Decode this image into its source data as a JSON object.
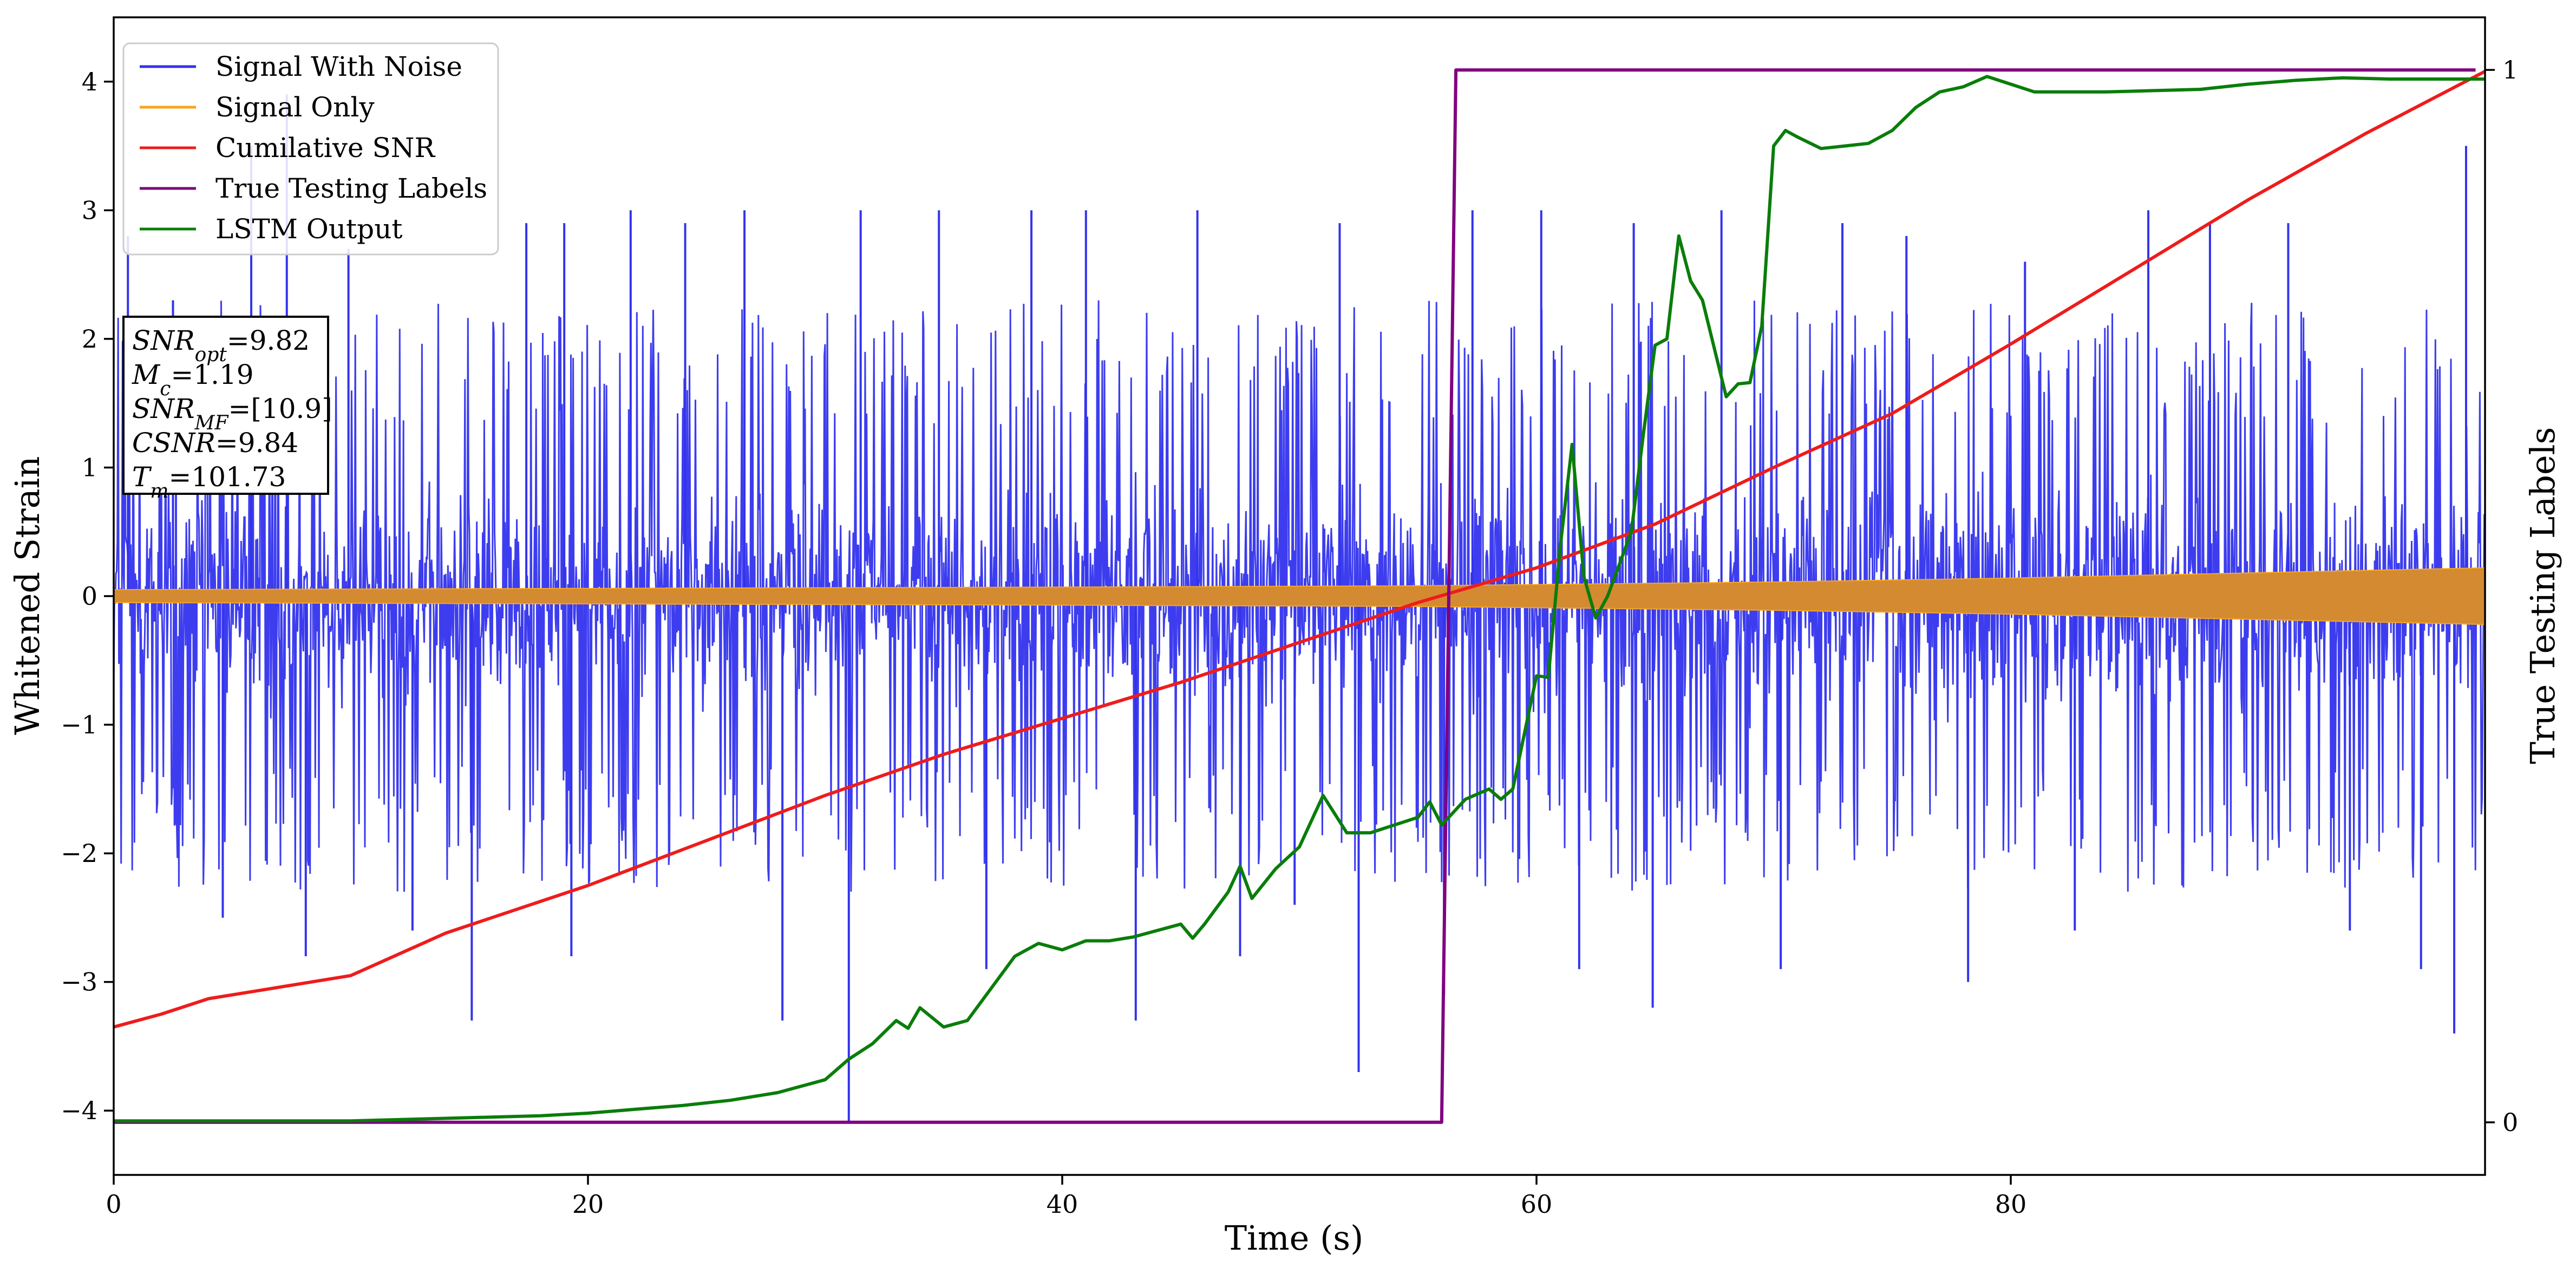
{
  "chart_data": {
    "type": "line",
    "xlabel": "Time (s)",
    "ylabel": "Whitened Strain",
    "y2label": "True Testing Labels",
    "xlim": [
      0,
      100
    ],
    "ylim": [
      -4.5,
      4.5
    ],
    "y2lim": [
      -0.05,
      1.05
    ],
    "x_ticks": [
      0,
      20,
      40,
      60,
      80
    ],
    "x_tick_labels": [
      "0",
      "20",
      "40",
      "60",
      "80"
    ],
    "y_ticks": [
      -4,
      -3,
      -2,
      -1,
      0,
      1,
      2,
      3,
      4
    ],
    "y_tick_labels": [
      "−4",
      "−3",
      "−2",
      "−1",
      "0",
      "1",
      "2",
      "3",
      "4"
    ],
    "y2_ticks": [
      0,
      1
    ],
    "y2_tick_labels": [
      "0",
      "1"
    ],
    "grid": false,
    "legend_position": "top-left",
    "series": [
      {
        "name": "Signal With Noise",
        "color": "#3333ee",
        "axis": "left",
        "kind": "noise",
        "envelope": {
          "x": [
            0,
            100
          ],
          "upper": [
            1.1,
            1.1
          ],
          "lower": [
            -1.1,
            -1.1
          ]
        },
        "spikes": [
          {
            "x": 0.6,
            "y": 2.8
          },
          {
            "x": 2.5,
            "y": 2.3
          },
          {
            "x": 4.6,
            "y": -2.5
          },
          {
            "x": 5.8,
            "y": 3.5
          },
          {
            "x": 7.3,
            "y": 3.9
          },
          {
            "x": 8.1,
            "y": -2.8
          },
          {
            "x": 9.9,
            "y": 2.7
          },
          {
            "x": 12.6,
            "y": -2.6
          },
          {
            "x": 15.1,
            "y": -3.3
          },
          {
            "x": 17.4,
            "y": 2.9
          },
          {
            "x": 19.0,
            "y": 2.9
          },
          {
            "x": 19.3,
            "y": -2.8
          },
          {
            "x": 21.8,
            "y": 3.0
          },
          {
            "x": 24.1,
            "y": 2.9
          },
          {
            "x": 26.6,
            "y": 3.0
          },
          {
            "x": 28.2,
            "y": -3.3
          },
          {
            "x": 31.0,
            "y": -4.1
          },
          {
            "x": 31.5,
            "y": 3.0
          },
          {
            "x": 34.8,
            "y": 3.0
          },
          {
            "x": 36.8,
            "y": -2.9
          },
          {
            "x": 38.7,
            "y": 3.0
          },
          {
            "x": 41.0,
            "y": 3.0
          },
          {
            "x": 43.1,
            "y": -3.3
          },
          {
            "x": 45.7,
            "y": 3.0
          },
          {
            "x": 47.5,
            "y": -2.8
          },
          {
            "x": 49.8,
            "y": -2.4
          },
          {
            "x": 51.7,
            "y": 2.9
          },
          {
            "x": 52.5,
            "y": -3.7
          },
          {
            "x": 56.1,
            "y": -3.1
          },
          {
            "x": 57.3,
            "y": 3.0
          },
          {
            "x": 60.2,
            "y": 3.0
          },
          {
            "x": 61.8,
            "y": -2.9
          },
          {
            "x": 64.1,
            "y": 2.9
          },
          {
            "x": 64.9,
            "y": -3.2
          },
          {
            "x": 67.8,
            "y": 3.0
          },
          {
            "x": 70.3,
            "y": -2.9
          },
          {
            "x": 72.9,
            "y": 2.9
          },
          {
            "x": 75.6,
            "y": 2.8
          },
          {
            "x": 78.2,
            "y": -3.0
          },
          {
            "x": 80.6,
            "y": 2.6
          },
          {
            "x": 82.7,
            "y": -2.6
          },
          {
            "x": 85.8,
            "y": 3.0
          },
          {
            "x": 88.4,
            "y": 2.9
          },
          {
            "x": 91.7,
            "y": 2.9
          },
          {
            "x": 94.3,
            "y": -2.6
          },
          {
            "x": 97.3,
            "y": -2.9
          },
          {
            "x": 98.7,
            "y": -3.4
          },
          {
            "x": 99.2,
            "y": 3.5
          }
        ]
      },
      {
        "name": "Signal Only",
        "color": "#f5a623",
        "axis": "left",
        "kind": "chirp",
        "amplitude": {
          "x": [
            0,
            20,
            40,
            55,
            60,
            70,
            80,
            90,
            100
          ],
          "y": [
            0.05,
            0.06,
            0.07,
            0.08,
            0.09,
            0.11,
            0.14,
            0.18,
            0.22
          ]
        }
      },
      {
        "name": "Cumilative SNR",
        "color": "#ee1c1c",
        "axis": "left",
        "kind": "line",
        "x": [
          0,
          2,
          4,
          6,
          10,
          14,
          20,
          25,
          30,
          35,
          40,
          45,
          50,
          55,
          60,
          65,
          70,
          75,
          80,
          85,
          90,
          95,
          100
        ],
        "y": [
          -3.35,
          -3.25,
          -3.13,
          -3.07,
          -2.95,
          -2.62,
          -2.25,
          -1.9,
          -1.55,
          -1.23,
          -0.95,
          -0.67,
          -0.36,
          -0.05,
          0.22,
          0.56,
          1.0,
          1.42,
          1.96,
          2.52,
          3.08,
          3.6,
          4.08
        ]
      },
      {
        "name": "True Testing Labels",
        "color": "#800080",
        "axis": "right",
        "kind": "line",
        "x": [
          0,
          56.0,
          56.6,
          99.6
        ],
        "y": [
          0,
          0,
          1,
          1
        ]
      },
      {
        "name": "LSTM Output",
        "color": "#0a7d0a",
        "axis": "left",
        "kind": "line",
        "x": [
          0,
          10,
          12,
          14,
          16,
          18,
          20,
          22,
          24,
          26,
          28,
          30,
          31,
          32,
          33,
          33.5,
          34,
          35,
          36,
          37,
          38,
          38.5,
          39,
          40,
          41,
          42,
          43,
          44,
          45,
          45.5,
          46,
          47,
          47.5,
          48,
          49,
          50,
          51,
          52,
          53,
          54,
          55,
          55.5,
          56,
          57,
          58,
          58.5,
          59,
          60,
          60.5,
          61,
          61.5,
          62,
          62.5,
          63,
          64,
          64.5,
          65,
          65.5,
          66,
          66.5,
          67,
          68,
          68.5,
          69,
          69.5,
          70,
          70.5,
          71,
          72,
          73,
          74,
          75,
          76,
          77,
          78,
          79,
          80,
          81,
          82,
          84,
          86,
          88,
          90,
          92,
          94,
          96,
          98,
          100
        ],
        "y": [
          -4.08,
          -4.08,
          -4.07,
          -4.06,
          -4.05,
          -4.04,
          -4.02,
          -3.99,
          -3.96,
          -3.92,
          -3.86,
          -3.76,
          -3.6,
          -3.48,
          -3.3,
          -3.36,
          -3.2,
          -3.35,
          -3.3,
          -3.05,
          -2.8,
          -2.75,
          -2.7,
          -2.75,
          -2.68,
          -2.68,
          -2.65,
          -2.6,
          -2.55,
          -2.66,
          -2.55,
          -2.3,
          -2.1,
          -2.35,
          -2.12,
          -1.95,
          -1.55,
          -1.84,
          -1.84,
          -1.78,
          -1.72,
          -1.6,
          -1.78,
          -1.58,
          -1.5,
          -1.58,
          -1.5,
          -0.62,
          -0.63,
          0.38,
          1.18,
          0.15,
          -0.17,
          0.0,
          0.5,
          1.25,
          1.95,
          2.0,
          2.8,
          2.45,
          2.3,
          1.55,
          1.65,
          1.66,
          2.1,
          3.5,
          3.62,
          3.57,
          3.48,
          3.5,
          3.52,
          3.62,
          3.8,
          3.92,
          3.96,
          4.04,
          3.98,
          3.92,
          3.92,
          3.92,
          3.93,
          3.94,
          3.98,
          4.01,
          4.03,
          4.02,
          4.02,
          4.02
        ]
      }
    ]
  },
  "legend": {
    "items": [
      {
        "label": "Signal With Noise",
        "color": "#3333ee"
      },
      {
        "label": "Signal Only",
        "color": "#f5a623"
      },
      {
        "label": "Cumilative SNR",
        "color": "#ee1c1c"
      },
      {
        "label": "True Testing Labels",
        "color": "#800080"
      },
      {
        "label": "LSTM Output",
        "color": "#0a7d0a"
      }
    ]
  },
  "info_box": {
    "lines": [
      {
        "symbol": "SNR",
        "sub": "opt",
        "value": "=9.82"
      },
      {
        "symbol": "M",
        "sub": "c",
        "value": "=1.19"
      },
      {
        "symbol": "SNR",
        "sub": "MF",
        "value": "=[10.9]"
      },
      {
        "symbol": "CSNR",
        "sub": "",
        "value": "=9.84"
      },
      {
        "symbol": "T",
        "sub": "m",
        "value": "=101.73"
      }
    ]
  }
}
